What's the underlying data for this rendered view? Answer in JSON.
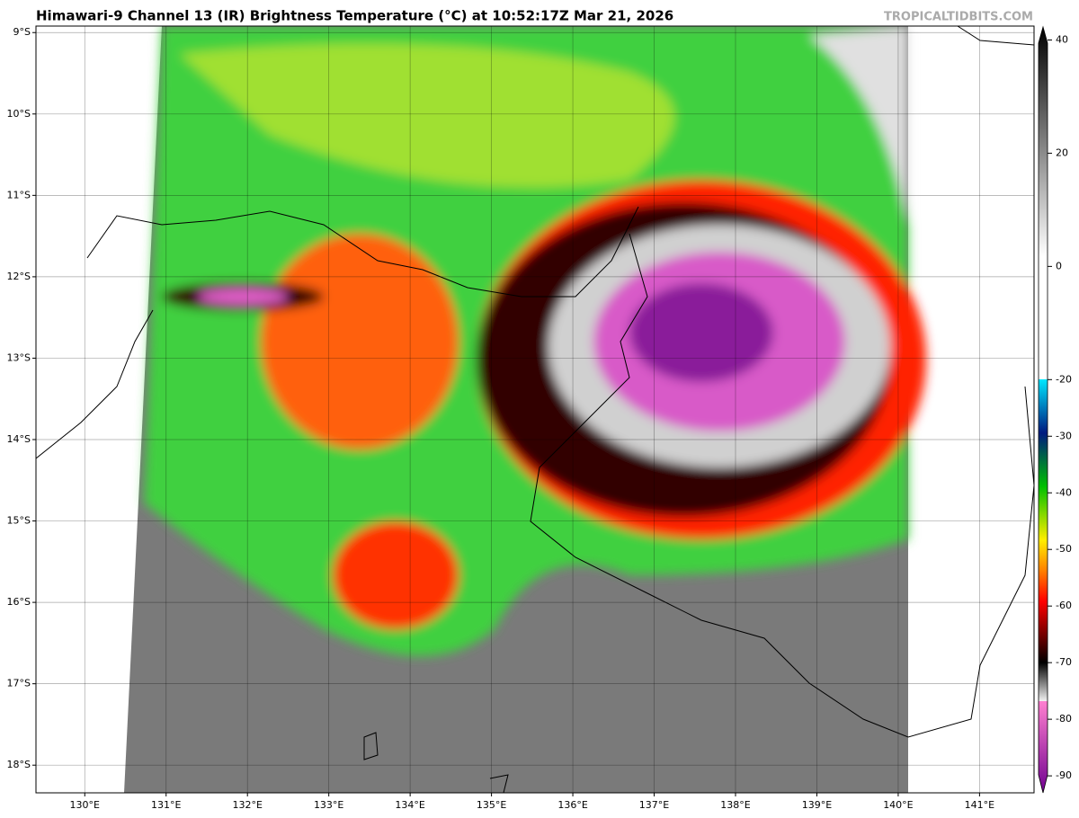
{
  "header": {
    "title": "Himawari-9 Channel 13 (IR) Brightness Temperature (°C) at 10:52:17Z Mar 21, 2026",
    "watermark": "TROPICALTIDBITS.COM"
  },
  "map": {
    "lat_lim": [
      -8.92,
      -18.34
    ],
    "lat_ticks": [
      {
        "value": -9,
        "label": "9°S"
      },
      {
        "value": -10,
        "label": "10°S"
      },
      {
        "value": -11,
        "label": "11°S"
      },
      {
        "value": -12,
        "label": "12°S"
      },
      {
        "value": -13,
        "label": "13°S"
      },
      {
        "value": -14,
        "label": "14°S"
      },
      {
        "value": -15,
        "label": "15°S"
      },
      {
        "value": -16,
        "label": "16°S"
      },
      {
        "value": -17,
        "label": "17°S"
      },
      {
        "value": -18,
        "label": "18°S"
      }
    ],
    "lon_lim": [
      129.4,
      141.67
    ],
    "lon_ticks": [
      {
        "value": 130,
        "label": "130°E"
      },
      {
        "value": 131,
        "label": "131°E"
      },
      {
        "value": 132,
        "label": "132°E"
      },
      {
        "value": 133,
        "label": "133°E"
      },
      {
        "value": 134,
        "label": "134°E"
      },
      {
        "value": 135,
        "label": "135°E"
      },
      {
        "value": 136,
        "label": "136°E"
      },
      {
        "value": 137,
        "label": "137°E"
      },
      {
        "value": 138,
        "label": "138°E"
      },
      {
        "value": 139,
        "label": "139°E"
      },
      {
        "value": 140,
        "label": "140°E"
      },
      {
        "value": 141,
        "label": "141°E"
      }
    ],
    "grid": true
  },
  "colorbar": {
    "range": [
      42.3,
      -93
    ],
    "ticks": [
      40,
      20,
      0,
      -20,
      -30,
      -40,
      -50,
      -60,
      -70,
      -80,
      -90
    ]
  }
}
